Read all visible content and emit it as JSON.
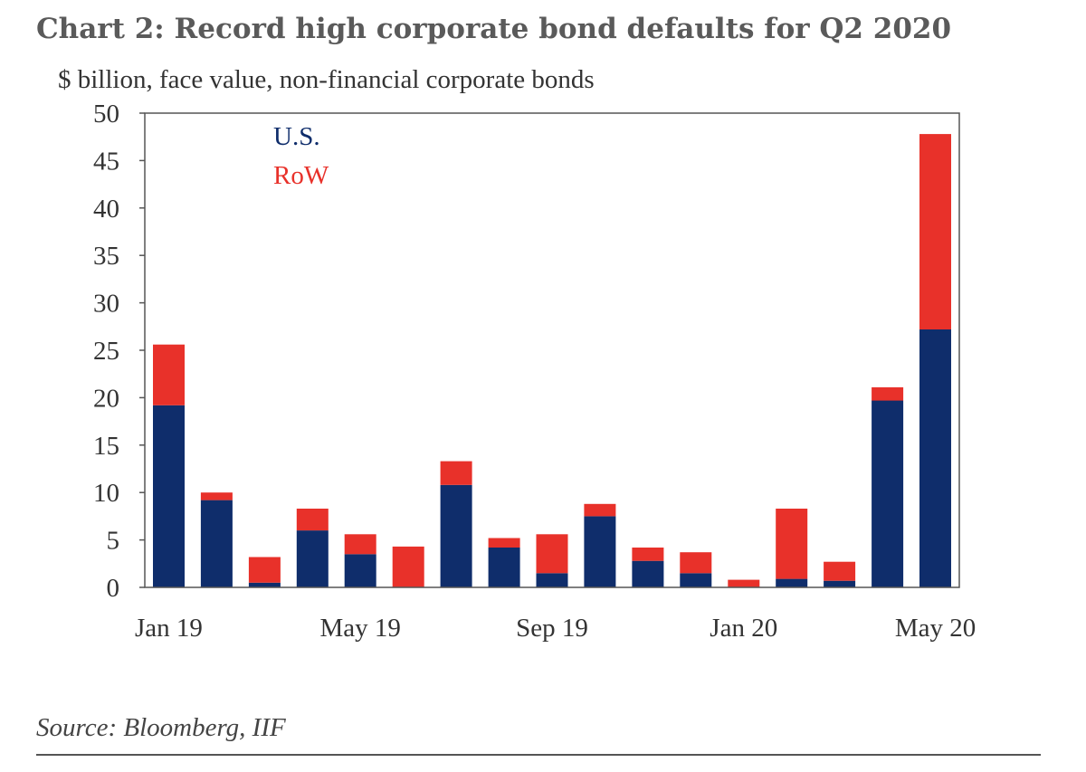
{
  "title": "Chart 2: Record high corporate bond defaults for Q2 2020",
  "subtitle": "$ billion, face value, non-financial corporate bonds",
  "source": "Source:  Bloomberg, IIF",
  "chart_data": {
    "type": "bar",
    "stacked": true,
    "categories": [
      "Jan 19",
      "Feb 19",
      "Mar 19",
      "Apr 19",
      "May 19",
      "Jun 19",
      "Jul 19",
      "Aug 19",
      "Sep 19",
      "Oct 19",
      "Nov 19",
      "Dec 19",
      "Jan 20",
      "Feb 20",
      "Mar 20",
      "Apr 20",
      "May 20"
    ],
    "x_tick_labels": [
      "Jan 19",
      "May 19",
      "Sep 19",
      "Jan 20",
      "May 20"
    ],
    "x_tick_indices": [
      0,
      4,
      8,
      12,
      16
    ],
    "series": [
      {
        "name": "U.S.",
        "color": "#0f2d6b",
        "values": [
          19.2,
          9.2,
          0.5,
          6.0,
          3.5,
          0.0,
          10.8,
          4.2,
          1.5,
          7.5,
          2.8,
          1.5,
          0.0,
          0.9,
          0.7,
          19.7,
          27.2
        ]
      },
      {
        "name": "RoW",
        "color": "#e8312a",
        "values": [
          6.4,
          0.8,
          2.7,
          2.3,
          2.1,
          4.3,
          2.5,
          1.0,
          4.1,
          1.3,
          1.4,
          2.2,
          0.8,
          7.4,
          2.0,
          1.4,
          20.6
        ]
      }
    ],
    "ylim": [
      0,
      50
    ],
    "yticks": [
      0,
      5,
      10,
      15,
      20,
      25,
      30,
      35,
      40,
      45,
      50
    ],
    "legend": "top-left",
    "grid": false
  }
}
